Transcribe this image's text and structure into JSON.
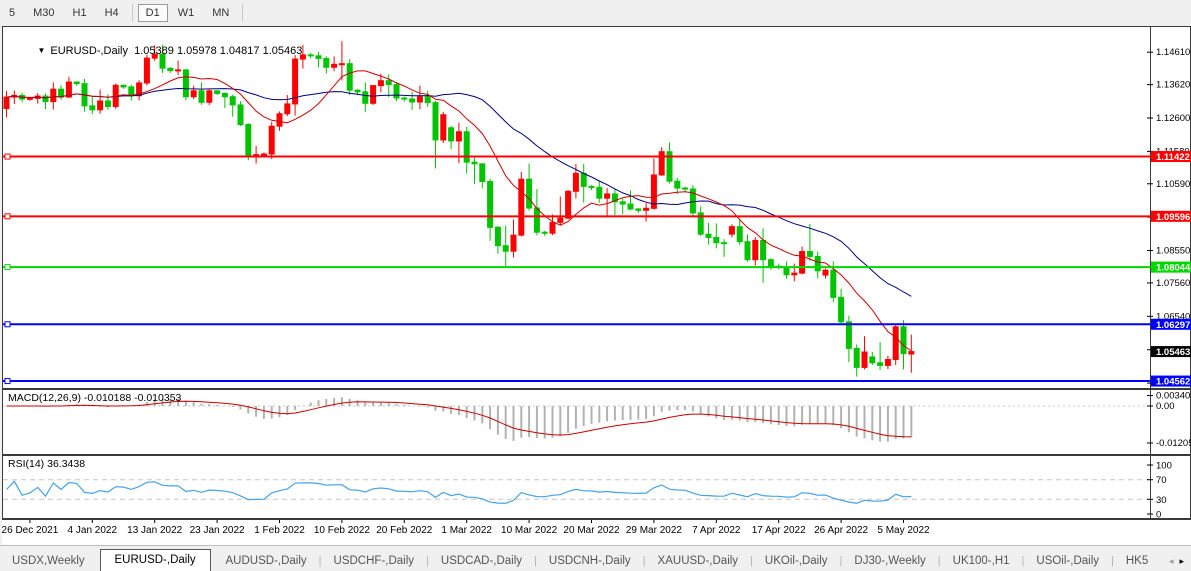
{
  "toolbar": {
    "timeframes": [
      "5",
      "M30",
      "H1",
      "H4",
      "D1",
      "W1",
      "MN"
    ],
    "active": "D1",
    "separators_after": [
      "H4",
      "MN"
    ]
  },
  "chart": {
    "title_symbol": "EURUSD-,Daily",
    "title_ohlc": "1.05389 1.05978 1.04817 1.05463"
  },
  "chart_data": {
    "type": "candlestick",
    "symbol": "EURUSD-,Daily",
    "colors": {
      "bull": "#ff0000",
      "bear": "#00c400",
      "ma_fast": "#cc0000",
      "ma_slow": "#00007f",
      "macd_bar": "#b2b2b2",
      "macd_signal": "#cc0000",
      "rsi_line": "#44a2e8",
      "level_dash": "#c6c6c6"
    },
    "price_range": [
      1.0435,
      1.1535
    ],
    "price_ticks": [
      "1.14610",
      "1.13620",
      "1.12600",
      "1.11580",
      "1.10590",
      "1.09570",
      "1.08550",
      "1.07560",
      "1.06540",
      "1.05520",
      "1.04500"
    ],
    "hlines": [
      {
        "price": 1.11422,
        "label": "1.11422",
        "color": "#ff0000"
      },
      {
        "price": 1.09596,
        "label": "1.09596",
        "color": "#ff0000"
      },
      {
        "price": 1.08044,
        "label": "1.08044",
        "color": "#00d800"
      },
      {
        "price": 1.06297,
        "label": "1.06297",
        "color": "#0000ff"
      },
      {
        "price": 1.04562,
        "label": "1.04562",
        "color": "#0000ff"
      }
    ],
    "current_price": {
      "price": 1.05463,
      "label": "1.05463",
      "bg": "#000000",
      "fg": "#ffffff"
    },
    "ma_periods": {
      "fast": 10,
      "slow": 25
    },
    "time_labels": [
      {
        "index": 3,
        "label": "26 Dec 2021"
      },
      {
        "index": 11,
        "label": "4 Jan 2022"
      },
      {
        "index": 19,
        "label": "13 Jan 2022"
      },
      {
        "index": 27,
        "label": "23 Jan 2022"
      },
      {
        "index": 35,
        "label": "1 Feb 2022"
      },
      {
        "index": 43,
        "label": "10 Feb 2022"
      },
      {
        "index": 51,
        "label": "20 Feb 2022"
      },
      {
        "index": 59,
        "label": "1 Mar 2022"
      },
      {
        "index": 67,
        "label": "10 Mar 2022"
      },
      {
        "index": 75,
        "label": "20 Mar 2022"
      },
      {
        "index": 83,
        "label": "29 Mar 2022"
      },
      {
        "index": 91,
        "label": "7 Apr 2022"
      },
      {
        "index": 99,
        "label": "17 Apr 2022"
      },
      {
        "index": 107,
        "label": "26 Apr 2022"
      },
      {
        "index": 115,
        "label": "5 May 2022"
      }
    ],
    "ohlc": [
      [
        1.1289,
        1.1342,
        1.1262,
        1.1324
      ],
      [
        1.1324,
        1.1344,
        1.1303,
        1.1329
      ],
      [
        1.1329,
        1.1337,
        1.1308,
        1.1318
      ],
      [
        1.1318,
        1.1325,
        1.1313,
        1.132
      ],
      [
        1.132,
        1.1336,
        1.1304,
        1.1327
      ],
      [
        1.1327,
        1.1335,
        1.1287,
        1.131
      ],
      [
        1.131,
        1.1369,
        1.1286,
        1.1348
      ],
      [
        1.1348,
        1.136,
        1.1316,
        1.1324
      ],
      [
        1.1324,
        1.1386,
        1.1321,
        1.137
      ],
      [
        1.137,
        1.1372,
        1.1358,
        1.1365
      ],
      [
        1.1365,
        1.1379,
        1.1279,
        1.1297
      ],
      [
        1.1297,
        1.1324,
        1.1272,
        1.1285
      ],
      [
        1.1285,
        1.1347,
        1.1273,
        1.1312
      ],
      [
        1.1312,
        1.1332,
        1.1285,
        1.1295
      ],
      [
        1.1295,
        1.1365,
        1.1288,
        1.136
      ],
      [
        1.136,
        1.1362,
        1.1349,
        1.1355
      ],
      [
        1.1355,
        1.1362,
        1.1313,
        1.1328
      ],
      [
        1.1328,
        1.1375,
        1.1314,
        1.1367
      ],
      [
        1.1367,
        1.1453,
        1.136,
        1.1443
      ],
      [
        1.1443,
        1.1482,
        1.1435,
        1.1455
      ],
      [
        1.1455,
        1.1483,
        1.1398,
        1.1412
      ],
      [
        1.1412,
        1.1415,
        1.1398,
        1.1405
      ],
      [
        1.1405,
        1.1435,
        1.1391,
        1.1407
      ],
      [
        1.1407,
        1.1411,
        1.1314,
        1.1325
      ],
      [
        1.1325,
        1.1359,
        1.1318,
        1.1343
      ],
      [
        1.1343,
        1.1369,
        1.1301,
        1.1308
      ],
      [
        1.1308,
        1.1348,
        1.13,
        1.1343
      ],
      [
        1.1343,
        1.1345,
        1.133,
        1.1335
      ],
      [
        1.1335,
        1.1338,
        1.129,
        1.1325
      ],
      [
        1.1325,
        1.1331,
        1.1264,
        1.13
      ],
      [
        1.13,
        1.1311,
        1.1235,
        1.124
      ],
      [
        1.124,
        1.1244,
        1.1131,
        1.1145
      ],
      [
        1.1145,
        1.1175,
        1.1121,
        1.1148
      ],
      [
        1.1148,
        1.1155,
        1.114,
        1.115
      ],
      [
        1.115,
        1.1248,
        1.1135,
        1.1235
      ],
      [
        1.1235,
        1.128,
        1.1221,
        1.1273
      ],
      [
        1.1273,
        1.133,
        1.1266,
        1.1303
      ],
      [
        1.1303,
        1.1452,
        1.1267,
        1.144
      ],
      [
        1.144,
        1.1483,
        1.1411,
        1.1453
      ],
      [
        1.1453,
        1.1459,
        1.1442,
        1.145
      ],
      [
        1.145,
        1.1462,
        1.1415,
        1.1442
      ],
      [
        1.1442,
        1.1449,
        1.1396,
        1.1415
      ],
      [
        1.1415,
        1.1448,
        1.1403,
        1.1424
      ],
      [
        1.1424,
        1.1495,
        1.1375,
        1.1426
      ],
      [
        1.1426,
        1.144,
        1.133,
        1.1345
      ],
      [
        1.1345,
        1.1348,
        1.133,
        1.134
      ],
      [
        1.134,
        1.1369,
        1.1278,
        1.1305
      ],
      [
        1.1305,
        1.136,
        1.13,
        1.1359
      ],
      [
        1.1359,
        1.1395,
        1.1339,
        1.1374
      ],
      [
        1.1374,
        1.1393,
        1.1324,
        1.1362
      ],
      [
        1.1362,
        1.137,
        1.1312,
        1.1321
      ],
      [
        1.1321,
        1.1325,
        1.131,
        1.1318
      ],
      [
        1.1318,
        1.134,
        1.1285,
        1.1309
      ],
      [
        1.1309,
        1.1359,
        1.1287,
        1.1325
      ],
      [
        1.1325,
        1.1343,
        1.1294,
        1.1307
      ],
      [
        1.1307,
        1.1313,
        1.1106,
        1.1193
      ],
      [
        1.1193,
        1.1279,
        1.1184,
        1.127
      ],
      [
        1.123,
        1.1235,
        1.1165,
        1.119
      ],
      [
        1.119,
        1.1246,
        1.1122,
        1.1218
      ],
      [
        1.1218,
        1.1233,
        1.109,
        1.1125
      ],
      [
        1.1125,
        1.1139,
        1.1058,
        1.112
      ],
      [
        1.112,
        1.1121,
        1.1045,
        1.1066
      ],
      [
        1.1066,
        1.1075,
        1.0885,
        1.0926
      ],
      [
        1.0926,
        1.093,
        1.0845,
        1.087
      ],
      [
        1.087,
        1.0931,
        1.0806,
        1.0853
      ],
      [
        1.0853,
        1.095,
        1.0834,
        1.0902
      ],
      [
        1.0902,
        1.1095,
        1.0898,
        1.1073
      ],
      [
        1.1073,
        1.1121,
        1.0977,
        1.0985
      ],
      [
        1.0985,
        1.1043,
        1.0901,
        1.0911
      ],
      [
        1.0911,
        1.0915,
        1.09,
        1.0908
      ],
      [
        1.0908,
        1.0965,
        1.0902,
        1.0941
      ],
      [
        1.0941,
        1.102,
        1.0932,
        1.0954
      ],
      [
        1.0954,
        1.104,
        1.095,
        1.1036
      ],
      [
        1.1036,
        1.1119,
        1.1014,
        1.1091
      ],
      [
        1.1091,
        1.112,
        1.1002,
        1.1051
      ],
      [
        1.1051,
        1.1055,
        1.104,
        1.1048
      ],
      [
        1.1048,
        1.1069,
        1.1001,
        1.1015
      ],
      [
        1.1015,
        1.1046,
        1.0961,
        1.1028
      ],
      [
        1.1028,
        1.1044,
        1.0963,
        1.1004
      ],
      [
        1.1004,
        1.1014,
        1.0966,
        1.0997
      ],
      [
        1.0997,
        1.1039,
        1.0978,
        1.0982
      ],
      [
        1.0982,
        1.0985,
        1.097,
        1.0978
      ],
      [
        1.0978,
        1.1,
        1.0944,
        1.0984
      ],
      [
        1.0984,
        1.1137,
        1.098,
        1.1086
      ],
      [
        1.1086,
        1.1171,
        1.1083,
        1.1157
      ],
      [
        1.1157,
        1.1185,
        1.106,
        1.1067
      ],
      [
        1.1067,
        1.1077,
        1.1027,
        1.1046
      ],
      [
        1.1046,
        1.105,
        1.1035,
        1.1043
      ],
      [
        1.1043,
        1.1055,
        1.096,
        1.097
      ],
      [
        1.097,
        1.099,
        1.0899,
        1.0905
      ],
      [
        1.0905,
        1.0939,
        1.0874,
        1.0895
      ],
      [
        1.0895,
        1.0938,
        1.0862,
        1.0879
      ],
      [
        1.0879,
        1.089,
        1.0836,
        1.0876
      ],
      [
        1.0905,
        1.0935,
        1.0895,
        1.0928
      ],
      [
        1.0928,
        1.095,
        1.0872,
        1.0882
      ],
      [
        1.0882,
        1.0904,
        1.0821,
        1.0827
      ],
      [
        1.0827,
        1.0896,
        1.0809,
        1.0886
      ],
      [
        1.0886,
        1.0923,
        1.0757,
        1.0827
      ],
      [
        1.0827,
        1.0832,
        1.0796,
        1.0807
      ],
      [
        1.0807,
        1.0815,
        1.0798,
        1.0805
      ],
      [
        1.0805,
        1.0822,
        1.0769,
        1.0781
      ],
      [
        1.0781,
        1.0815,
        1.0761,
        1.0786
      ],
      [
        1.0786,
        1.0867,
        1.0782,
        1.0852
      ],
      [
        1.0852,
        1.0936,
        1.0824,
        1.0837
      ],
      [
        1.0837,
        1.0852,
        1.077,
        1.0793
      ],
      [
        1.078,
        1.08,
        1.077,
        1.0795
      ],
      [
        1.0795,
        1.0822,
        1.0697,
        1.0712
      ],
      [
        1.0712,
        1.0738,
        1.0633,
        1.0637
      ],
      [
        1.0637,
        1.0656,
        1.0514,
        1.0556
      ],
      [
        1.0556,
        1.0568,
        1.047,
        1.0498
      ],
      [
        1.0498,
        1.0593,
        1.0492,
        1.0545
      ],
      [
        1.053,
        1.0545,
        1.0505,
        1.0512
      ],
      [
        1.0512,
        1.0575,
        1.049,
        1.0504
      ],
      [
        1.0504,
        1.0533,
        1.0493,
        1.0522
      ],
      [
        1.0522,
        1.0632,
        1.0505,
        1.0622
      ],
      [
        1.0622,
        1.0642,
        1.0492,
        1.054
      ],
      [
        1.05389,
        1.05978,
        1.04817,
        1.05463
      ]
    ],
    "macd": {
      "label": "MACD(12,26,9)",
      "values": "-0.010188 -0.010353",
      "axis": [
        "0.003408",
        "0.00",
        "-0.01205"
      ],
      "params": [
        12,
        26,
        9
      ]
    },
    "rsi": {
      "label": "RSI(14)",
      "value": "36.3438",
      "period": 14,
      "levels": [
        70,
        30
      ],
      "axis": [
        "100",
        "70",
        "30",
        "0"
      ]
    }
  },
  "tabbar": {
    "tabs": [
      "USDX,Weekly",
      "EURUSD-,Daily",
      "AUDUSD-,Daily",
      "USDCHF-,Daily",
      "USDCAD-,Daily",
      "USDCNH-,Daily",
      "XAUUSD-,Daily",
      "UKOil-,Daily",
      "DJ30-,Weekly",
      "UK100-,H1",
      "USOil-,Daily",
      "HK5"
    ],
    "active_index": 1,
    "left_arrow": "◂",
    "right_arrow": "▸"
  }
}
